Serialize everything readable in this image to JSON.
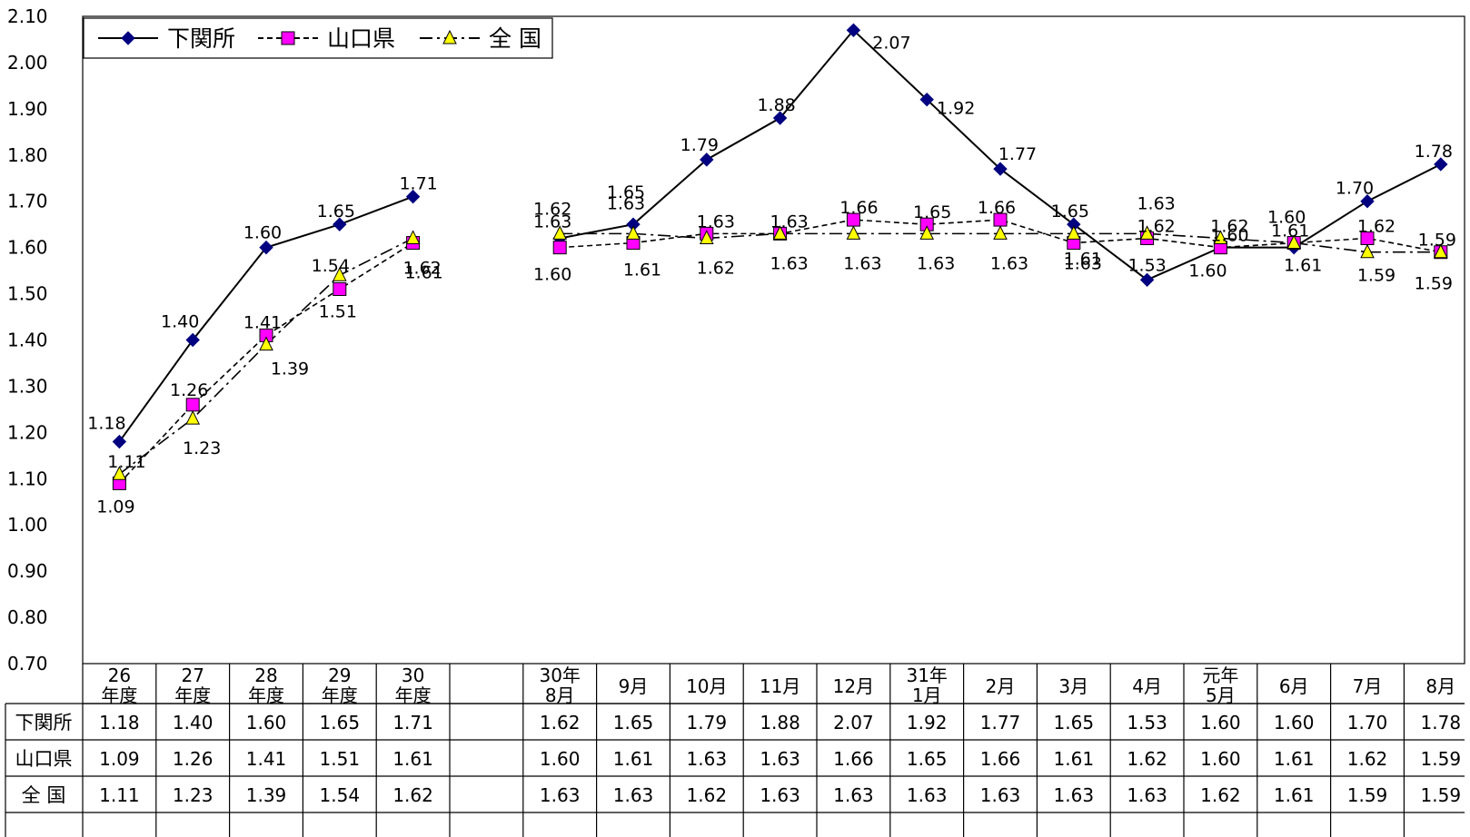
{
  "chart_data": {
    "type": "line",
    "ylim": [
      0.7,
      2.1
    ],
    "y_ticks": [
      "2.10",
      "2.00",
      "1.90",
      "1.80",
      "1.70",
      "1.60",
      "1.50",
      "1.40",
      "1.30",
      "1.20",
      "1.10",
      "1.00",
      "0.90",
      "0.80",
      "0.70"
    ],
    "categories": [
      [
        "26",
        "年度"
      ],
      [
        "27",
        "年度"
      ],
      [
        "28",
        "年度"
      ],
      [
        "29",
        "年度"
      ],
      [
        "30",
        "年度"
      ],
      [
        "",
        ""
      ],
      [
        "30年",
        "8月"
      ],
      [
        "9月"
      ],
      [
        "10月"
      ],
      [
        "11月"
      ],
      [
        "12月"
      ],
      [
        "31年",
        "1月"
      ],
      [
        "2月"
      ],
      [
        "3月"
      ],
      [
        "4月"
      ],
      [
        "元年",
        "5月"
      ],
      [
        "6月"
      ],
      [
        "7月"
      ],
      [
        "8月"
      ]
    ],
    "legend": {
      "placement": "top-left"
    },
    "series": [
      {
        "name": "下関所",
        "color": "#000080",
        "marker": "diamond",
        "dash": "none",
        "values": [
          1.18,
          1.4,
          1.6,
          1.65,
          1.71,
          null,
          1.62,
          1.65,
          1.79,
          1.88,
          2.07,
          1.92,
          1.77,
          1.65,
          1.53,
          1.6,
          1.6,
          1.7,
          1.78
        ],
        "labels": [
          "1.18",
          "1.40",
          "1.60",
          "1.65",
          "1.71",
          "",
          "1.62",
          "1.65",
          "1.79",
          "1.88",
          "2.07",
          "1.92",
          "1.77",
          "1.65",
          "1.53",
          "1.60",
          "1.60",
          "1.70",
          "1.78"
        ]
      },
      {
        "name": "山口県",
        "color": "#ff00ff",
        "marker": "square",
        "dash": "dashed",
        "values": [
          1.09,
          1.26,
          1.41,
          1.51,
          1.61,
          null,
          1.6,
          1.61,
          1.63,
          1.63,
          1.66,
          1.65,
          1.66,
          1.61,
          1.62,
          1.6,
          1.61,
          1.62,
          1.59
        ],
        "labels": [
          "1.09",
          "1.26",
          "1.41",
          "1.51",
          "1.61",
          "",
          "1.60",
          "1.61",
          "1.63",
          "1.63",
          "1.66",
          "1.65",
          "1.66",
          "1.61",
          "1.62",
          "1.60",
          "1.61",
          "1.62",
          "1.59"
        ]
      },
      {
        "name": "全 国",
        "color": "#ffff00",
        "marker": "triangle",
        "dash": "dashdot",
        "values": [
          1.11,
          1.23,
          1.39,
          1.54,
          1.62,
          null,
          1.63,
          1.63,
          1.62,
          1.63,
          1.63,
          1.63,
          1.63,
          1.63,
          1.63,
          1.62,
          1.61,
          1.59,
          1.59
        ],
        "labels": [
          "1.11",
          "1.23",
          "1.39",
          "1.54",
          "1.62",
          "",
          "1.63",
          "1.63",
          "1.62",
          "1.63",
          "1.63",
          "1.63",
          "1.63",
          "1.63",
          "1.63",
          "1.62",
          "1.61",
          "1.59",
          "1.59"
        ]
      }
    ],
    "table": {
      "row_headers": [
        "下関所",
        "山口県",
        "全 国"
      ],
      "rows": [
        [
          "1.18",
          "1.40",
          "1.60",
          "1.65",
          "1.71",
          "",
          "1.62",
          "1.65",
          "1.79",
          "1.88",
          "2.07",
          "1.92",
          "1.77",
          "1.65",
          "1.53",
          "1.60",
          "1.60",
          "1.70",
          "1.78"
        ],
        [
          "1.09",
          "1.26",
          "1.41",
          "1.51",
          "1.61",
          "",
          "1.60",
          "1.61",
          "1.63",
          "1.63",
          "1.66",
          "1.65",
          "1.66",
          "1.61",
          "1.62",
          "1.60",
          "1.61",
          "1.62",
          "1.59"
        ],
        [
          "1.11",
          "1.23",
          "1.39",
          "1.54",
          "1.62",
          "",
          "1.63",
          "1.63",
          "1.62",
          "1.63",
          "1.63",
          "1.63",
          "1.63",
          "1.63",
          "1.63",
          "1.62",
          "1.61",
          "1.59",
          "1.59"
        ]
      ]
    }
  }
}
